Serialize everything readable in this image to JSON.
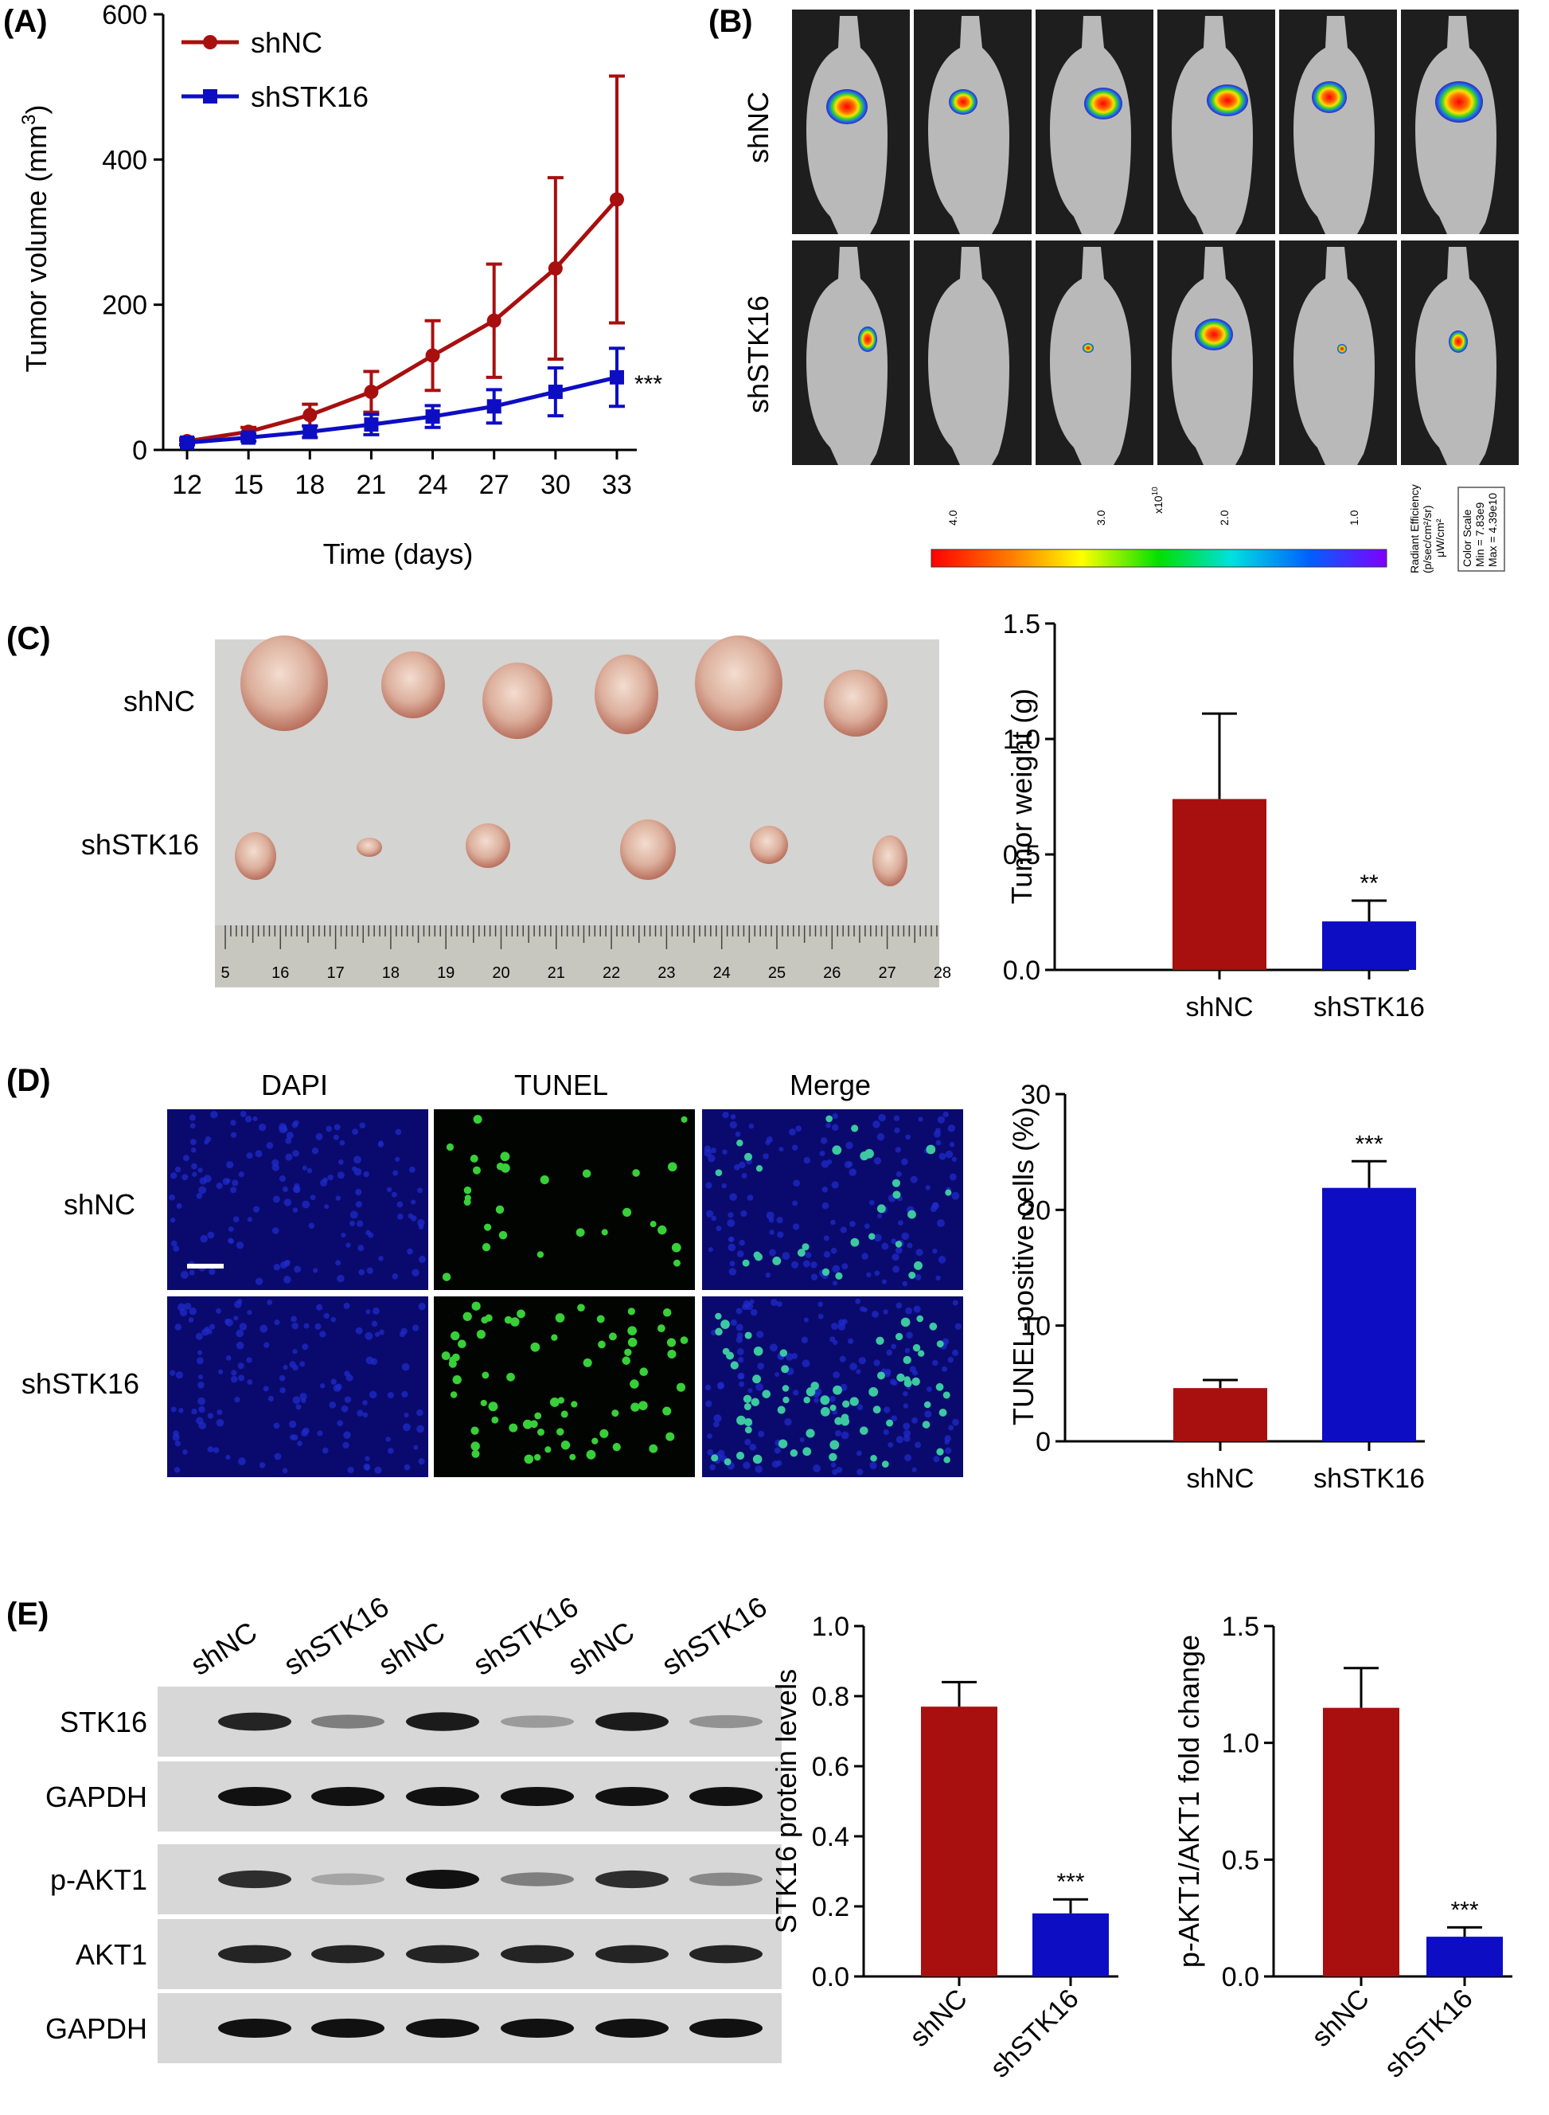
{
  "panels": {
    "A": "(A)",
    "B": "(B)",
    "C": "(C)",
    "D": "(D)",
    "E": "(E)"
  },
  "colors": {
    "shNC": "#a80f0f",
    "shSTK16": "#0d0dc4"
  },
  "panel_b": {
    "row_labels": [
      "shNC",
      "shSTK16"
    ],
    "colorbar": {
      "ticks": [
        "4.0",
        "3.0",
        "2.0",
        "1.0"
      ],
      "exponent": "x10",
      "exponent_power": "10",
      "units_line1": "Radiant Efficiency",
      "units_line2": "(p/sec/cm²/sr)",
      "units_line3": "μW/cm²",
      "scale_line1": "Color Scale",
      "scale_line2": "Min = 7.83e9",
      "scale_line3": "Max = 4.39e10"
    }
  },
  "panel_c": {
    "row_labels": [
      "shNC",
      "shSTK16"
    ],
    "ruler_ticks": [
      "5",
      "16",
      "17",
      "18",
      "19",
      "20",
      "21",
      "22",
      "23",
      "24",
      "25",
      "26",
      "27",
      "28"
    ]
  },
  "panel_d": {
    "column_labels": [
      "DAPI",
      "TUNEL",
      "Merge"
    ],
    "row_labels": [
      "shNC",
      "shSTK16"
    ]
  },
  "panel_e": {
    "lane_labels": [
      "shNC",
      "shSTK16",
      "shNC",
      "shSTK16",
      "shNC",
      "shSTK16"
    ],
    "blot_labels": [
      "STK16",
      "GAPDH",
      "p-AKT1",
      "AKT1",
      "GAPDH"
    ]
  },
  "chart_data": [
    {
      "id": "A",
      "type": "line",
      "title": "",
      "xlabel": "Time (days)",
      "ylabel": "Tumor volume (mm",
      "ylabel_sup": "3",
      "ylabel_end": ")",
      "x": [
        12,
        15,
        18,
        21,
        24,
        27,
        30,
        33
      ],
      "xlim": [
        12,
        33
      ],
      "ylim": [
        0,
        600
      ],
      "yticks": [
        0,
        200,
        400,
        600
      ],
      "legend": "top-left",
      "series": [
        {
          "name": "shNC",
          "values": [
            12,
            25,
            48,
            80,
            130,
            178,
            250,
            345
          ],
          "errors": [
            4,
            6,
            15,
            28,
            48,
            78,
            125,
            170
          ],
          "marker": "circle"
        },
        {
          "name": "shSTK16",
          "values": [
            10,
            17,
            25,
            35,
            46,
            60,
            80,
            100
          ],
          "errors": [
            3,
            5,
            8,
            14,
            15,
            23,
            33,
            40
          ],
          "marker": "square"
        }
      ],
      "annotation": "***"
    },
    {
      "id": "C",
      "type": "bar",
      "title": "",
      "categories": [
        "shNC",
        "shSTK16"
      ],
      "values": [
        0.74,
        0.21
      ],
      "errors": [
        0.37,
        0.09
      ],
      "ylabel": "Tumor weight (g)",
      "ylim": [
        0,
        1.5
      ],
      "yticks": [
        0.0,
        0.5,
        1.0,
        1.5
      ],
      "ytick_labels": [
        "0.0",
        "0.5",
        "1.0",
        "1.5"
      ],
      "significance": [
        "",
        "**"
      ]
    },
    {
      "id": "D",
      "type": "bar",
      "title": "",
      "categories": [
        "shNC",
        "shSTK16"
      ],
      "values": [
        4.6,
        21.9
      ],
      "errors": [
        0.7,
        2.3
      ],
      "ylabel": "TUNEL-positive cells (%)",
      "ylim": [
        0,
        30
      ],
      "yticks": [
        0,
        10,
        20,
        30
      ],
      "ytick_labels": [
        "0",
        "10",
        "20",
        "30"
      ],
      "significance": [
        "",
        "***"
      ]
    },
    {
      "id": "E1",
      "type": "bar",
      "title": "",
      "categories": [
        "shNC",
        "shSTK16"
      ],
      "values": [
        0.77,
        0.18
      ],
      "errors": [
        0.07,
        0.04
      ],
      "ylabel": "STK16 protein levels",
      "ylim": [
        0,
        1.0
      ],
      "yticks": [
        0.0,
        0.2,
        0.4,
        0.6,
        0.8,
        1.0
      ],
      "ytick_labels": [
        "0.0",
        "0.2",
        "0.4",
        "0.6",
        "0.8",
        "1.0"
      ],
      "significance": [
        "",
        "***"
      ]
    },
    {
      "id": "E2",
      "type": "bar",
      "title": "",
      "categories": [
        "shNC",
        "shSTK16"
      ],
      "values": [
        1.15,
        0.17
      ],
      "errors": [
        0.17,
        0.04
      ],
      "ylabel": "p-AKT1/AKT1 fold change",
      "ylim": [
        0,
        1.5
      ],
      "yticks": [
        0.0,
        0.5,
        1.0,
        1.5
      ],
      "ytick_labels": [
        "0.0",
        "0.5",
        "1.0",
        "1.5"
      ],
      "significance": [
        "",
        "***"
      ]
    }
  ]
}
